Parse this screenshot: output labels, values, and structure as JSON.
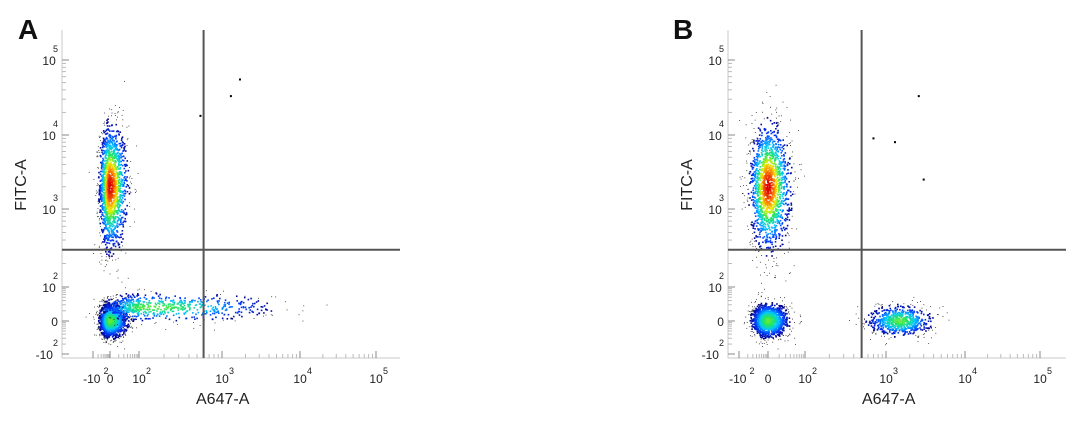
{
  "chart_data": [
    {
      "type": "scatter",
      "panel_label": "A",
      "xlabel": "A647-A",
      "ylabel": "FITC-A",
      "x_ticks": [
        {
          "base": "-10",
          "sup": "2"
        },
        {
          "base": "0",
          "sup": ""
        },
        {
          "base": "10",
          "sup": "2"
        },
        {
          "base": "10",
          "sup": "3"
        },
        {
          "base": "10",
          "sup": "4"
        },
        {
          "base": "10",
          "sup": "5"
        }
      ],
      "y_ticks": [
        {
          "base": "-10",
          "sup": "2"
        },
        {
          "base": "0",
          "sup": ""
        },
        {
          "base": "10",
          "sup": "2"
        },
        {
          "base": "10",
          "sup": "3"
        },
        {
          "base": "10",
          "sup": "4"
        },
        {
          "base": "10",
          "sup": "5"
        }
      ],
      "gate": {
        "x": 600,
        "y": 300
      },
      "populations": [
        {
          "x": 0,
          "y": 2000,
          "sx": 0.55,
          "sy": 0.75,
          "count": 1600
        },
        {
          "x": 0,
          "y": 0,
          "sx": 0.55,
          "sy": 0.45,
          "count": 1500
        },
        {
          "x": 150,
          "y": 40,
          "sx": 1.3,
          "sy": 0.35,
          "count": 700
        }
      ],
      "sparse_points": [
        [
          1700,
          55000
        ],
        [
          1300,
          33000
        ],
        [
          550,
          18000
        ]
      ]
    },
    {
      "type": "scatter",
      "panel_label": "B",
      "xlabel": "A647-A",
      "ylabel": "FITC-A",
      "x_ticks": [
        {
          "base": "-10",
          "sup": "2"
        },
        {
          "base": "0",
          "sup": ""
        },
        {
          "base": "10",
          "sup": "2"
        },
        {
          "base": "10",
          "sup": "3"
        },
        {
          "base": "10",
          "sup": "4"
        },
        {
          "base": "10",
          "sup": "5"
        }
      ],
      "y_ticks": [
        {
          "base": "-10",
          "sup": "2"
        },
        {
          "base": "0",
          "sup": ""
        },
        {
          "base": "10",
          "sup": "2"
        },
        {
          "base": "10",
          "sup": "3"
        },
        {
          "base": "10",
          "sup": "4"
        },
        {
          "base": "10",
          "sup": "5"
        }
      ],
      "gate": {
        "x": 500,
        "y": 300
      },
      "populations": [
        {
          "x": 0,
          "y": 2000,
          "sx": 0.55,
          "sy": 0.75,
          "count": 1600
        },
        {
          "x": 0,
          "y": 0,
          "sx": 0.5,
          "sy": 0.45,
          "count": 1300
        },
        {
          "x": 1500,
          "y": 0,
          "sx": 0.35,
          "sy": 0.4,
          "count": 700
        }
      ],
      "sparse_points": [
        [
          2600,
          33000
        ],
        [
          700,
          9000
        ],
        [
          1300,
          8000
        ],
        [
          3000,
          2500
        ]
      ]
    }
  ]
}
